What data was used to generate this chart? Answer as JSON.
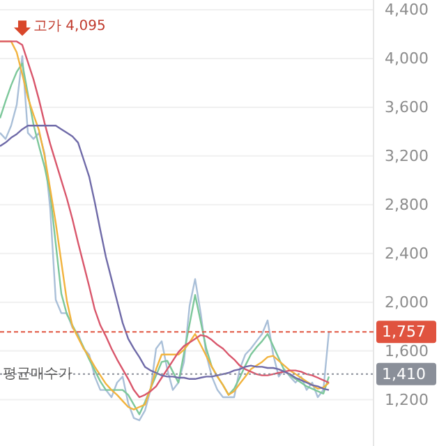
{
  "chart_data": {
    "type": "line",
    "categories": [
      null,
      null,
      null,
      null,
      null,
      null,
      null,
      null,
      null,
      null,
      null,
      null,
      null,
      null,
      null,
      null,
      null,
      null,
      null,
      null,
      null,
      null,
      null,
      null,
      null,
      null,
      null,
      null,
      null,
      null,
      null,
      null,
      null,
      null,
      null,
      null,
      null,
      null,
      null,
      null,
      null,
      null,
      null,
      null,
      null,
      null,
      null,
      null,
      null,
      null,
      null,
      null,
      null,
      null,
      null,
      null,
      null,
      null,
      null,
      null
    ],
    "ylim": [
      820,
      4480
    ],
    "yticks": [
      {
        "value": 1200,
        "label": "1,200"
      },
      {
        "value": 1600,
        "label": "1,600"
      },
      {
        "value": 2000,
        "label": "2,000"
      },
      {
        "value": 2400,
        "label": "2,400"
      },
      {
        "value": 2800,
        "label": "2,800"
      },
      {
        "value": 3200,
        "label": "3,200"
      },
      {
        "value": 3600,
        "label": "3,600"
      },
      {
        "value": 4000,
        "label": "4,000"
      },
      {
        "value": 4400,
        "label": "4,400"
      }
    ],
    "tick_labels": "y",
    "grid": "y",
    "series": [
      {
        "color": "#a9bfd8",
        "values": [
          3390,
          3340,
          3450,
          3620,
          4020,
          3390,
          3340,
          3390,
          3220,
          2770,
          2020,
          1910,
          1910,
          1790,
          1740,
          1620,
          1570,
          1390,
          1280,
          1280,
          1220,
          1340,
          1390,
          1170,
          1050,
          1030,
          1110,
          1280,
          1620,
          1680,
          1450,
          1280,
          1340,
          1510,
          1970,
          2190,
          1910,
          1570,
          1390,
          1280,
          1220,
          1220,
          1220,
          1450,
          1570,
          1620,
          1680,
          1740,
          1850,
          1570,
          1390,
          1450,
          1390,
          1340,
          1390,
          1280,
          1340,
          1220,
          1280,
          1757
        ]
      },
      {
        "color": "#7cc79a",
        "values": [
          3510,
          3650,
          3780,
          3890,
          3960,
          3710,
          3460,
          3280,
          3110,
          2890,
          2480,
          2070,
          1900,
          1810,
          1720,
          1630,
          1530,
          1440,
          1350,
          1280,
          1280,
          1280,
          1280,
          1240,
          1160,
          1080,
          1180,
          1290,
          1400,
          1510,
          1520,
          1430,
          1340,
          1580,
          1820,
          2060,
          1840,
          1620,
          1470,
          1390,
          1320,
          1240,
          1290,
          1380,
          1480,
          1570,
          1630,
          1680,
          1740,
          1640,
          1540,
          1440,
          1400,
          1370,
          1340,
          1310,
          1290,
          1270,
          1250,
          1390
        ]
      },
      {
        "color": "#f2b33d",
        "values": [
          4140,
          4140,
          4140,
          4050,
          3870,
          3680,
          3540,
          3410,
          3200,
          2930,
          2650,
          2330,
          2010,
          1800,
          1710,
          1620,
          1550,
          1470,
          1400,
          1330,
          1280,
          1240,
          1190,
          1140,
          1120,
          1140,
          1160,
          1290,
          1450,
          1570,
          1570,
          1570,
          1570,
          1610,
          1670,
          1740,
          1650,
          1560,
          1470,
          1390,
          1320,
          1240,
          1270,
          1330,
          1390,
          1450,
          1480,
          1510,
          1550,
          1560,
          1520,
          1480,
          1440,
          1410,
          1380,
          1350,
          1320,
          1290,
          1300,
          1340
        ]
      },
      {
        "color": "#d9566b",
        "values": [
          4140,
          4140,
          4140,
          4140,
          4110,
          3970,
          3830,
          3660,
          3470,
          3300,
          3150,
          3000,
          2850,
          2680,
          2490,
          2310,
          2130,
          1940,
          1810,
          1720,
          1620,
          1530,
          1450,
          1370,
          1280,
          1220,
          1240,
          1270,
          1310,
          1380,
          1450,
          1520,
          1590,
          1640,
          1670,
          1700,
          1730,
          1720,
          1690,
          1650,
          1620,
          1570,
          1530,
          1480,
          1450,
          1430,
          1410,
          1400,
          1400,
          1410,
          1420,
          1430,
          1440,
          1440,
          1430,
          1410,
          1400,
          1380,
          1360,
          1340
        ]
      },
      {
        "color": "#6f6aa8",
        "values": [
          3280,
          3310,
          3350,
          3380,
          3420,
          3450,
          3450,
          3450,
          3450,
          3450,
          3450,
          3420,
          3390,
          3360,
          3310,
          3170,
          3030,
          2820,
          2590,
          2370,
          2190,
          2010,
          1830,
          1700,
          1620,
          1550,
          1470,
          1440,
          1420,
          1400,
          1390,
          1390,
          1380,
          1380,
          1370,
          1370,
          1380,
          1390,
          1390,
          1400,
          1410,
          1420,
          1440,
          1450,
          1470,
          1480,
          1470,
          1470,
          1460,
          1460,
          1450,
          1430,
          1410,
          1380,
          1360,
          1340,
          1320,
          1310,
          1290,
          1280
        ]
      }
    ],
    "ref_lines": [
      {
        "axis": "y",
        "value": 1757,
        "label": "1,757",
        "color": "#e0533f",
        "line_style": "dashed"
      },
      {
        "axis": "y",
        "value": 1410,
        "label": "1,410",
        "color": "#8a8f99",
        "line_style": "dotted"
      }
    ],
    "annotations": [
      "고가 4,095",
      {
        "text": "평균매수가",
        "y": 1410
      }
    ]
  }
}
